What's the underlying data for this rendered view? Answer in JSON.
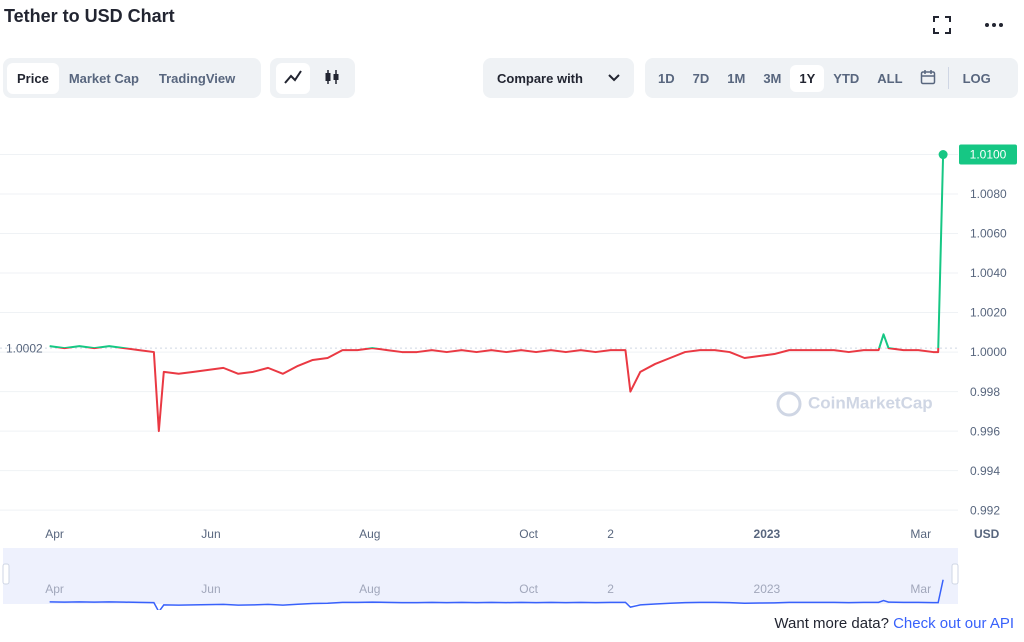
{
  "header": {
    "title": "Tether to USD Chart"
  },
  "toolbar": {
    "tabs": [
      "Price",
      "Market Cap",
      "TradingView"
    ],
    "compare": "Compare with",
    "ranges": [
      "1D",
      "7D",
      "1M",
      "3M",
      "1Y",
      "YTD",
      "ALL"
    ],
    "selected_range": "1Y",
    "log": "LOG"
  },
  "chart_data": {
    "type": "line",
    "x": [
      0,
      6,
      12,
      18,
      24,
      30,
      36,
      42,
      44,
      46,
      52,
      58,
      64,
      70,
      76,
      82,
      88,
      94,
      100,
      106,
      112,
      118,
      124,
      130,
      136,
      142,
      148,
      154,
      160,
      166,
      172,
      178,
      184,
      190,
      196,
      202,
      208,
      214,
      220,
      226,
      232,
      234,
      238,
      244,
      250,
      256,
      262,
      268,
      274,
      280,
      286,
      292,
      298,
      304,
      310,
      316,
      322,
      328,
      334,
      336,
      338,
      344,
      350,
      356,
      358,
      360
    ],
    "values": [
      1.0003,
      1.0002,
      1.0003,
      1.0002,
      1.0003,
      1.0002,
      1.0001,
      1.0,
      0.996,
      0.999,
      0.9989,
      0.999,
      0.9991,
      0.9992,
      0.9989,
      0.999,
      0.9992,
      0.9989,
      0.9993,
      0.9996,
      0.9997,
      1.0001,
      1.0001,
      1.0002,
      1.0001,
      1.0,
      1.0,
      1.0001,
      1.0,
      1.0001,
      1.0,
      1.0001,
      1.0,
      1.0001,
      1.0,
      1.0001,
      1.0,
      1.0001,
      1.0,
      1.0001,
      1.0001,
      0.998,
      0.999,
      0.9994,
      0.9997,
      1.0,
      1.0001,
      1.0001,
      1.0,
      0.9997,
      0.9998,
      0.9999,
      1.0001,
      1.0001,
      1.0001,
      1.0001,
      1.0,
      1.0001,
      1.0001,
      1.0009,
      1.0002,
      1.0001,
      1.0001,
      1.0,
      1.0,
      1.01
    ],
    "color": "#ea3943",
    "up_color": "#16c784",
    "navigator_color": "#3861fb",
    "xlim": [
      -20,
      366
    ],
    "xticks": [
      {
        "value": 2,
        "label": "Apr"
      },
      {
        "value": 65,
        "label": "Jun"
      },
      {
        "value": 129,
        "label": "Aug"
      },
      {
        "value": 193,
        "label": "Oct"
      },
      {
        "value": 226,
        "label": "2"
      },
      {
        "value": 289,
        "label": "2023"
      },
      {
        "value": 351,
        "label": "Mar"
      }
    ],
    "ylim": [
      0.9915,
      1.012
    ],
    "yticks": [
      {
        "value": 1.01,
        "label": "1.0100"
      },
      {
        "value": 1.008,
        "label": "1.0080"
      },
      {
        "value": 1.006,
        "label": "1.0060"
      },
      {
        "value": 1.004,
        "label": "1.0040"
      },
      {
        "value": 1.002,
        "label": "1.0020"
      },
      {
        "value": 1.0,
        "label": "1.0000"
      },
      0.998,
      0.996,
      0.994,
      0.992
    ],
    "ylabel": "USD",
    "reference_line": {
      "value": 1.0002,
      "label": "1.0002"
    },
    "grid": true,
    "watermark": "CoinMarketCap"
  },
  "footer": {
    "text": "Want more data?",
    "link": "Check out our API"
  }
}
